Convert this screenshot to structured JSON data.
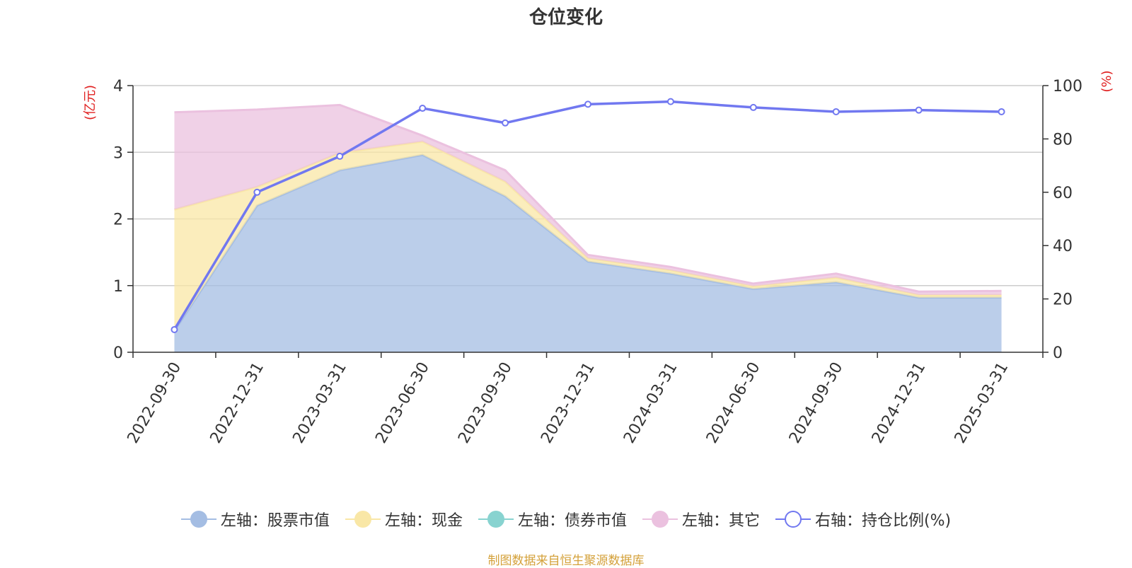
{
  "title": "仓位变化",
  "source_note": "制图数据来自恒生聚源数据库",
  "chart_data": {
    "type": "area",
    "categories": [
      "2022-09-30",
      "2022-12-31",
      "2023-03-31",
      "2023-06-30",
      "2023-09-30",
      "2023-12-31",
      "2024-03-31",
      "2024-06-30",
      "2024-09-30",
      "2024-12-31",
      "2025-03-31"
    ],
    "y_left": {
      "unit": "(亿元)",
      "ylim": [
        0,
        4
      ],
      "ticks": [
        "0",
        "1",
        "2",
        "3",
        "4"
      ]
    },
    "y_right": {
      "unit": "(%)",
      "ylim": [
        0,
        100
      ],
      "ticks": [
        "0",
        "20",
        "40",
        "60",
        "80",
        "100"
      ]
    },
    "grid": true,
    "legend_position": "bottom",
    "series": [
      {
        "name": "左轴：股票市值",
        "axis": "left",
        "kind": "area",
        "color": "#a4bde3",
        "values": [
          0.32,
          2.2,
          2.73,
          2.96,
          2.34,
          1.36,
          1.18,
          0.95,
          1.05,
          0.82,
          0.82
        ]
      },
      {
        "name": "左轴：现金",
        "axis": "left",
        "kind": "area",
        "color": "#f9e7a6",
        "values": [
          1.82,
          0.28,
          0.26,
          0.2,
          0.22,
          0.05,
          0.05,
          0.04,
          0.07,
          0.04,
          0.04
        ]
      },
      {
        "name": "左轴：债券市值",
        "axis": "left",
        "kind": "area",
        "color": "#88d3d0",
        "values": [
          0,
          0,
          0,
          0,
          0,
          0,
          0,
          0,
          0,
          0,
          0
        ]
      },
      {
        "name": "左轴：其它",
        "axis": "left",
        "kind": "area",
        "color": "#ebc1df",
        "values": [
          1.46,
          1.16,
          0.72,
          0.09,
          0.17,
          0.05,
          0.05,
          0.04,
          0.06,
          0.05,
          0.06
        ]
      },
      {
        "name": "右轴：持仓比例(%)",
        "axis": "right",
        "kind": "line",
        "color": "#7178f0",
        "values": [
          8.5,
          60,
          73.5,
          91.5,
          86,
          93,
          94,
          91.8,
          90.2,
          90.8,
          90.2
        ]
      }
    ]
  }
}
